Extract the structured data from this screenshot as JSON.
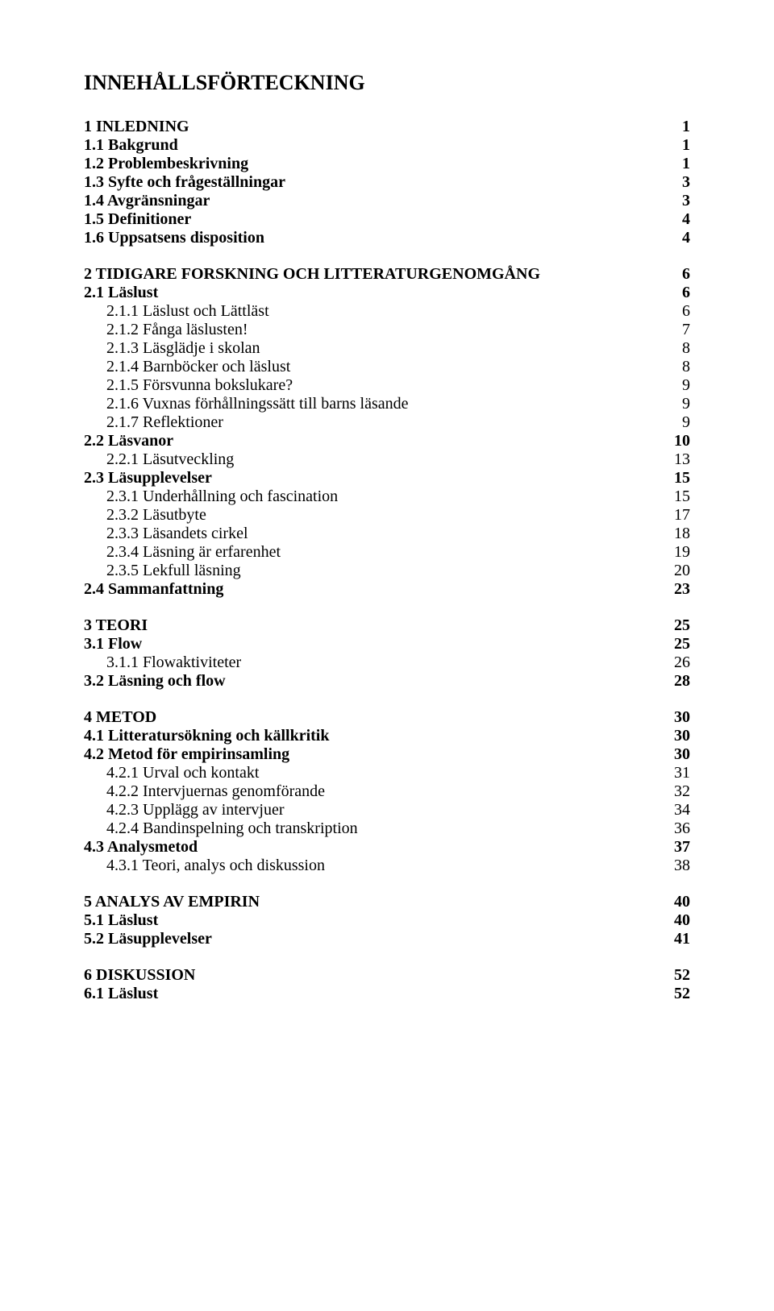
{
  "title": "INNEHÅLLSFÖRTECKNING",
  "entries": [
    {
      "label": "1 INLEDNING",
      "page": "1",
      "level": 0,
      "bold": true,
      "gapBefore": "none"
    },
    {
      "label": "1.1 Bakgrund",
      "page": "1",
      "level": 1,
      "bold": true,
      "gapBefore": "none"
    },
    {
      "label": "1.2 Problembeskrivning",
      "page": "1",
      "level": 1,
      "bold": true,
      "gapBefore": "none"
    },
    {
      "label": "1.3 Syfte och frågeställningar",
      "page": "3",
      "level": 1,
      "bold": true,
      "gapBefore": "none"
    },
    {
      "label": "1.4 Avgränsningar",
      "page": "3",
      "level": 1,
      "bold": true,
      "gapBefore": "none"
    },
    {
      "label": "1.5 Definitioner",
      "page": "4",
      "level": 1,
      "bold": true,
      "gapBefore": "none"
    },
    {
      "label": "1.6 Uppsatsens disposition",
      "page": "4",
      "level": 1,
      "bold": true,
      "gapBefore": "none"
    },
    {
      "label": "2 TIDIGARE FORSKNING OCH LITTERATURGENOMGÅNG",
      "page": "6",
      "level": 0,
      "bold": true,
      "gapBefore": "med"
    },
    {
      "label": "2.1 Läslust",
      "page": "6",
      "level": 1,
      "bold": true,
      "gapBefore": "none"
    },
    {
      "label": "2.1.1 Läslust och Lättläst",
      "page": "6",
      "level": 2,
      "bold": false,
      "gapBefore": "none"
    },
    {
      "label": "2.1.2 Fånga läslusten!",
      "page": "7",
      "level": 2,
      "bold": false,
      "gapBefore": "none"
    },
    {
      "label": "2.1.3 Läsglädje i skolan",
      "page": "8",
      "level": 2,
      "bold": false,
      "gapBefore": "none"
    },
    {
      "label": "2.1.4 Barnböcker och läslust",
      "page": "8",
      "level": 2,
      "bold": false,
      "gapBefore": "none"
    },
    {
      "label": "2.1.5 Försvunna bokslukare?",
      "page": "9",
      "level": 2,
      "bold": false,
      "gapBefore": "none"
    },
    {
      "label": "2.1.6 Vuxnas förhållningssätt till barns läsande",
      "page": "9",
      "level": 2,
      "bold": false,
      "gapBefore": "none"
    },
    {
      "label": "2.1.7 Reflektioner",
      "page": "9",
      "level": 2,
      "bold": false,
      "gapBefore": "none"
    },
    {
      "label": "2.2 Läsvanor",
      "page": "10",
      "level": 1,
      "bold": true,
      "gapBefore": "none"
    },
    {
      "label": "2.2.1 Läsutveckling",
      "page": "13",
      "level": 2,
      "bold": false,
      "gapBefore": "none"
    },
    {
      "label": "2.3 Läsupplevelser",
      "page": "15",
      "level": 1,
      "bold": true,
      "gapBefore": "none"
    },
    {
      "label": "2.3.1 Underhållning och fascination",
      "page": "15",
      "level": 2,
      "bold": false,
      "gapBefore": "none"
    },
    {
      "label": "2.3.2 Läsutbyte",
      "page": "17",
      "level": 2,
      "bold": false,
      "gapBefore": "none"
    },
    {
      "label": "2.3.3 Läsandets cirkel",
      "page": "18",
      "level": 2,
      "bold": false,
      "gapBefore": "none"
    },
    {
      "label": "2.3.4 Läsning är erfarenhet",
      "page": "19",
      "level": 2,
      "bold": false,
      "gapBefore": "none"
    },
    {
      "label": "2.3.5 Lekfull läsning",
      "page": "20",
      "level": 2,
      "bold": false,
      "gapBefore": "none"
    },
    {
      "label": "2.4 Sammanfattning",
      "page": "23",
      "level": 1,
      "bold": true,
      "gapBefore": "none"
    },
    {
      "label": "3 TEORI",
      "page": "25",
      "level": 0,
      "bold": true,
      "gapBefore": "med"
    },
    {
      "label": "3.1 Flow",
      "page": "25",
      "level": 1,
      "bold": true,
      "gapBefore": "none"
    },
    {
      "label": "3.1.1 Flowaktiviteter",
      "page": "26",
      "level": 2,
      "bold": false,
      "gapBefore": "none"
    },
    {
      "label": "3.2 Läsning och flow",
      "page": "28",
      "level": 1,
      "bold": true,
      "gapBefore": "none"
    },
    {
      "label": "4 METOD",
      "page": "30",
      "level": 0,
      "bold": true,
      "gapBefore": "med"
    },
    {
      "label": "4.1 Litteratursökning och källkritik",
      "page": "30",
      "level": 1,
      "bold": true,
      "gapBefore": "none"
    },
    {
      "label": "4.2 Metod för empirinsamling",
      "page": "30",
      "level": 1,
      "bold": true,
      "gapBefore": "none"
    },
    {
      "label": "4.2.1 Urval och kontakt",
      "page": "31",
      "level": 2,
      "bold": false,
      "gapBefore": "none"
    },
    {
      "label": "4.2.2 Intervjuernas genomförande",
      "page": "32",
      "level": 2,
      "bold": false,
      "gapBefore": "none"
    },
    {
      "label": "4.2.3 Upplägg av intervjuer",
      "page": "34",
      "level": 2,
      "bold": false,
      "gapBefore": "none"
    },
    {
      "label": "4.2.4 Bandinspelning och transkription",
      "page": "36",
      "level": 2,
      "bold": false,
      "gapBefore": "none"
    },
    {
      "label": "4.3 Analysmetod",
      "page": "37",
      "level": 1,
      "bold": true,
      "gapBefore": "none"
    },
    {
      "label": "4.3.1 Teori, analys och diskussion",
      "page": "38",
      "level": 2,
      "bold": false,
      "gapBefore": "none"
    },
    {
      "label": "5 ANALYS AV EMPIRIN",
      "page": "40",
      "level": 0,
      "bold": true,
      "gapBefore": "med"
    },
    {
      "label": "5.1 Läslust",
      "page": "40",
      "level": 1,
      "bold": true,
      "gapBefore": "none"
    },
    {
      "label": "5.2 Läsupplevelser",
      "page": "41",
      "level": 1,
      "bold": true,
      "gapBefore": "none"
    },
    {
      "label": "6 DISKUSSION",
      "page": "52",
      "level": 0,
      "bold": true,
      "gapBefore": "med"
    },
    {
      "label": "6.1 Läslust",
      "page": "52",
      "level": 1,
      "bold": true,
      "gapBefore": "none"
    }
  ]
}
